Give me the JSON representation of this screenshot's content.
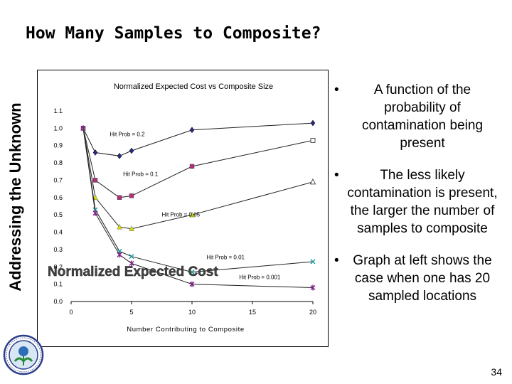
{
  "slide": {
    "title": "How Many Samples to Composite?",
    "side_title": "Addressing the Unknown",
    "page_number": "34",
    "overlay_label": "Normalized Expected Cost",
    "bullets": [
      "A function of the probability of contamination being present",
      "The less likely contamination is present, the larger the number of samples to composite",
      "Graph at left shows the case when one has 20 sampled locations"
    ],
    "logo": "epa-seal-icon"
  },
  "chart_data": {
    "type": "line",
    "title": "Normalized Expected Cost vs Composite Size",
    "xlabel": "Number Contributing to Composite",
    "ylabel": "",
    "xlim": [
      0,
      20
    ],
    "ylim": [
      0,
      1.1
    ],
    "xticks": [
      0,
      5,
      10,
      15,
      20
    ],
    "yticks": [
      "0.0",
      "0.1",
      "0.2",
      "0.3",
      "0.4",
      "0.5",
      "0.6",
      "0.7",
      "0.8",
      "0.9",
      "1.0",
      "1.1"
    ],
    "grid": false,
    "series": [
      {
        "name": "Hit Prob = 0.2",
        "color": "#2a2a80",
        "marker": "diamond",
        "x": [
          1,
          2,
          4,
          5,
          10,
          20
        ],
        "y": [
          1.0,
          0.86,
          0.84,
          0.87,
          0.99,
          1.03
        ]
      },
      {
        "name": "Hit Prob = 0.1",
        "color": "#b0307a",
        "marker": "square",
        "x": [
          1,
          2,
          4,
          5,
          10,
          20
        ],
        "y": [
          1.0,
          0.7,
          0.6,
          0.61,
          0.78,
          0.93
        ]
      },
      {
        "name": "Hit Prob = 0.05",
        "color": "#d8d800",
        "marker": "triangle",
        "x": [
          1,
          2,
          4,
          5,
          10,
          20
        ],
        "y": [
          1.0,
          0.6,
          0.43,
          0.42,
          0.5,
          0.69
        ]
      },
      {
        "name": "Hit Prob = 0.01",
        "color": "#20a0a0",
        "marker": "x",
        "x": [
          1,
          2,
          4,
          5,
          10,
          20
        ],
        "y": [
          1.0,
          0.53,
          0.29,
          0.26,
          0.17,
          0.23
        ]
      },
      {
        "name": "Hit Prob = 0.001",
        "color": "#80208a",
        "marker": "star",
        "x": [
          1,
          2,
          4,
          5,
          10,
          20
        ],
        "y": [
          1.0,
          0.51,
          0.27,
          0.22,
          0.1,
          0.08
        ]
      }
    ],
    "annotations": [
      {
        "text": "Hit Prob = 0.2",
        "x": 3.2,
        "y": 0.955
      },
      {
        "text": "Hit Prob = 0.1",
        "x": 4.3,
        "y": 0.725
      },
      {
        "text": "Hit Prob = 0.05",
        "x": 7.5,
        "y": 0.49
      },
      {
        "text": "Hit Prob = 0.01",
        "x": 11.2,
        "y": 0.245
      },
      {
        "text": "Hit Prob = 0.001",
        "x": 13.9,
        "y": 0.13
      }
    ]
  }
}
